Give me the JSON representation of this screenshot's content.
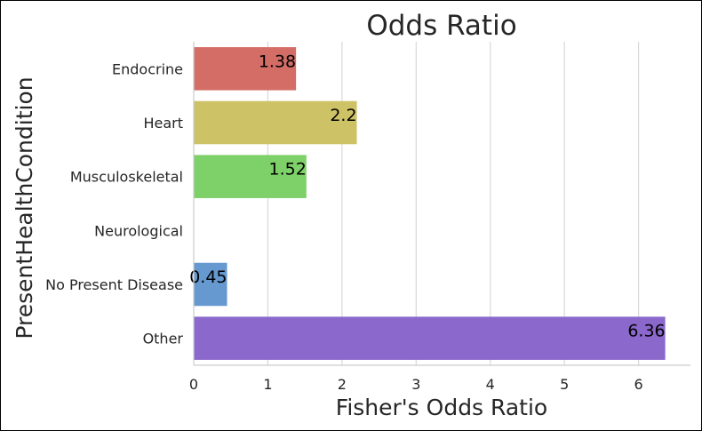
{
  "chart_data": {
    "type": "bar",
    "orientation": "horizontal",
    "title": "Odds Ratio",
    "xlabel": "Fisher's Odds Ratio",
    "ylabel": "PresentHealthCondition",
    "categories": [
      "Endocrine",
      "Heart",
      "Musculoskeletal",
      "Neurological",
      "No Present Disease",
      "Other"
    ],
    "values": [
      1.38,
      2.2,
      1.52,
      0,
      0.45,
      6.36
    ],
    "data_labels": [
      "1.38",
      "2.2",
      "1.52",
      "",
      "0.45",
      "6.36"
    ],
    "colors": [
      "#d36d66",
      "#cec266",
      "#7ed068",
      "#6ad0a7",
      "#6599cf",
      "#8a68cc"
    ],
    "xlim": [
      0,
      6.7
    ],
    "xticks": [
      0,
      1,
      2,
      3,
      4,
      5,
      6
    ],
    "grid": "vertical",
    "legend": "none"
  }
}
